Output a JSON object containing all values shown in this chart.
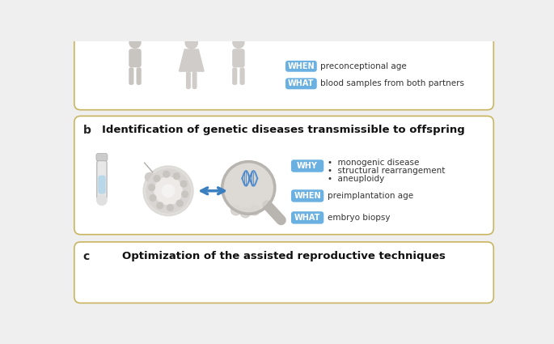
{
  "bg_color": "#efefef",
  "panel_bg": "#ffffff",
  "panel_border_color": "#c8b560",
  "panel_b_title": "Identification of genetic diseases transmissible to offspring",
  "panel_c_title": "Optimization of the assisted reproductive techniques",
  "label_b": "b",
  "label_c": "c",
  "button_color": "#6ab0e0",
  "button_text_color": "#ffffff",
  "button_why": "WHY",
  "button_when": "WHEN",
  "button_what": "WHAT",
  "why_bullets": [
    "monogenic disease",
    "structural rearrangement",
    "aneuploidy"
  ],
  "when_text_b": "preimplantation age",
  "what_text_b": "embryo biopsy",
  "top_when_text": "preconceptional age",
  "top_what_text": "blood samples from both partners",
  "title_fontsize": 9.5,
  "label_fontsize": 10,
  "button_fontsize": 7,
  "text_fontsize": 7.5,
  "arrow_color": "#3a7fc0",
  "figure_color": "#c8c4c0",
  "figure_color2": "#d0ccca"
}
